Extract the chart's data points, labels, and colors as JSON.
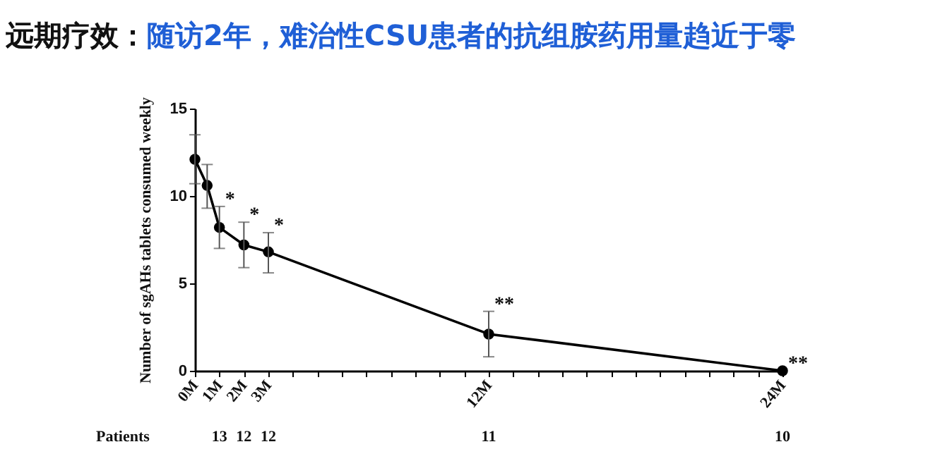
{
  "chart_data": {
    "type": "line",
    "title": "远期疗效：",
    "subtitle": "随访2年，难治性CSU患者的抗组胺药用量趋近于零",
    "ylabel": "Number of sgAHs tablets consumed weekly",
    "x": [
      0,
      0.5,
      1,
      2,
      3,
      12,
      24
    ],
    "series": [
      {
        "color": "#000000",
        "values": [
          12.1,
          10.6,
          8.2,
          7.2,
          6.8,
          2.1,
          0
        ],
        "errors": [
          [
            10.7,
            13.5
          ],
          [
            9.3,
            11.8
          ],
          [
            7.0,
            9.4
          ],
          [
            5.9,
            8.5
          ],
          [
            5.6,
            7.9
          ],
          [
            0.8,
            3.4
          ],
          null
        ]
      }
    ],
    "marker": "circle",
    "line_style": "solid",
    "xlim": [
      0,
      24
    ],
    "xticks": [
      {
        "value": 0,
        "label": "0M"
      },
      {
        "value": 1,
        "label": "1M"
      },
      {
        "value": 2,
        "label": "2M"
      },
      {
        "value": 3,
        "label": "3M"
      },
      {
        "value": 4,
        "label": null
      },
      {
        "value": 5,
        "label": null
      },
      {
        "value": 6,
        "label": null
      },
      {
        "value": 7,
        "label": null
      },
      {
        "value": 8,
        "label": null
      },
      {
        "value": 9,
        "label": null
      },
      {
        "value": 10,
        "label": null
      },
      {
        "value": 11,
        "label": null
      },
      {
        "value": 12,
        "label": "12M"
      },
      {
        "value": 13,
        "label": null
      },
      {
        "value": 14,
        "label": null
      },
      {
        "value": 15,
        "label": null
      },
      {
        "value": 16,
        "label": null
      },
      {
        "value": 17,
        "label": null
      },
      {
        "value": 18,
        "label": null
      },
      {
        "value": 19,
        "label": null
      },
      {
        "value": 20,
        "label": null
      },
      {
        "value": 21,
        "label": null
      },
      {
        "value": 22,
        "label": null
      },
      {
        "value": 23,
        "label": null
      },
      {
        "value": 24,
        "label": "24M"
      }
    ],
    "ylim": [
      0,
      15
    ],
    "yticks": [
      0,
      5,
      10,
      15
    ],
    "grid": false,
    "annotations": [
      {
        "text": "*",
        "x": 1,
        "y": 9.4
      },
      {
        "text": "*",
        "x": 2,
        "y": 8.5
      },
      {
        "text": "*",
        "x": 3,
        "y": 7.9
      },
      {
        "text": "**",
        "x": 12,
        "y": 3.4
      },
      {
        "text": "**",
        "x": 24,
        "y": 0
      },
      "Patients",
      "13",
      "12",
      "12",
      "11",
      "10"
    ]
  }
}
